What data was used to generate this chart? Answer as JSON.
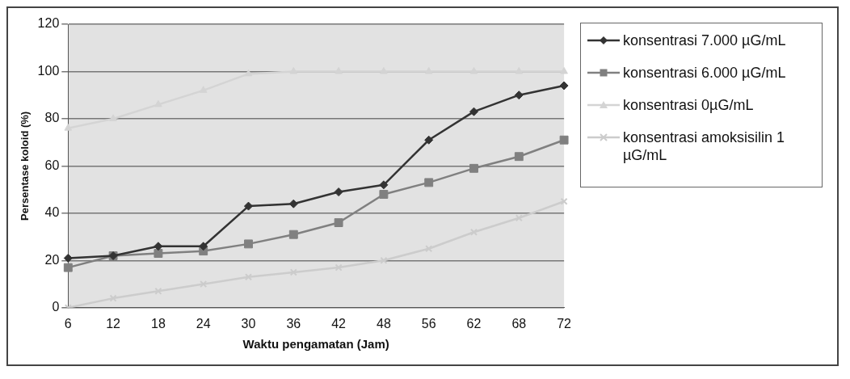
{
  "chart_data": {
    "type": "line",
    "xlabel": "Waktu pengamatan (Jam)",
    "ylabel": "Persentase koloid (%)",
    "categories": [
      "6",
      "12",
      "18",
      "24",
      "30",
      "36",
      "42",
      "48",
      "56",
      "62",
      "68",
      "72"
    ],
    "ylim": [
      0,
      120
    ],
    "yticks": [
      0,
      20,
      40,
      60,
      80,
      100,
      120
    ],
    "grid": "y",
    "legend": "right",
    "line_style": "solid",
    "series": [
      {
        "name": "konsentrasi 7.000 µG/mL",
        "color": "#333333",
        "marker": "diamond",
        "values": [
          21,
          22,
          26,
          26,
          43,
          44,
          49,
          52,
          71,
          83,
          90,
          94
        ]
      },
      {
        "name": "konsentrasi 6.000 µG/mL",
        "color": "#808080",
        "marker": "square",
        "values": [
          17,
          22,
          23,
          24,
          27,
          31,
          36,
          48,
          53,
          59,
          64,
          71
        ]
      },
      {
        "name": "konsentrasi 0µG/mL",
        "color": "#d4d4d4",
        "marker": "triangle",
        "values": [
          76,
          80,
          86,
          92,
          99,
          100,
          100,
          100,
          100,
          100,
          100,
          100
        ]
      },
      {
        "name": "konsentrasi amoksisilin 1 µG/mL",
        "color": "#cccccc",
        "marker": "cross",
        "values": [
          0,
          4,
          7,
          10,
          13,
          15,
          17,
          20,
          25,
          32,
          38,
          45
        ]
      }
    ]
  }
}
